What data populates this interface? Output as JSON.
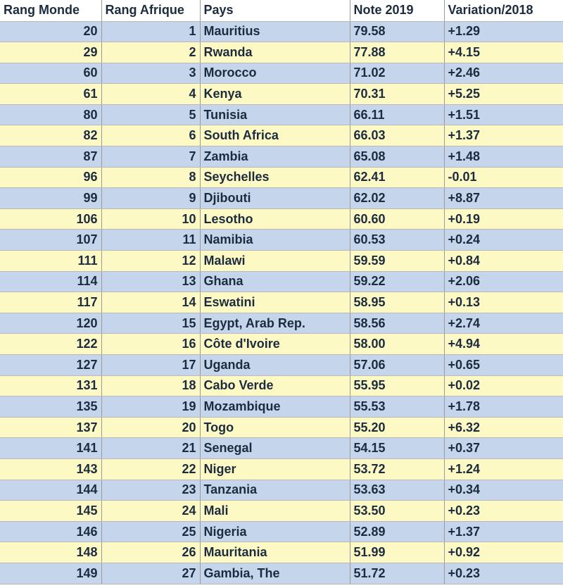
{
  "header": {
    "rang_monde": "Rang Monde",
    "rang_afrique": "Rang Afrique",
    "pays": "Pays",
    "note": "Note 2019",
    "variation": "Variation/2018"
  },
  "rows": [
    {
      "rang_monde": "20",
      "rang_afrique": "1",
      "pays": "Mauritius",
      "note": "79.58",
      "variation": "+1.29"
    },
    {
      "rang_monde": "29",
      "rang_afrique": "2",
      "pays": "Rwanda",
      "note": "77.88",
      "variation": "+4.15"
    },
    {
      "rang_monde": "60",
      "rang_afrique": "3",
      "pays": "Morocco",
      "note": "71.02",
      "variation": "+2.46"
    },
    {
      "rang_monde": "61",
      "rang_afrique": "4",
      "pays": "Kenya",
      "note": "70.31",
      "variation": "+5.25"
    },
    {
      "rang_monde": "80",
      "rang_afrique": "5",
      "pays": "Tunisia",
      "note": "66.11",
      "variation": "+1.51"
    },
    {
      "rang_monde": "82",
      "rang_afrique": "6",
      "pays": "South Africa",
      "note": "66.03",
      "variation": "+1.37"
    },
    {
      "rang_monde": "87",
      "rang_afrique": "7",
      "pays": "Zambia",
      "note": "65.08",
      "variation": "+1.48"
    },
    {
      "rang_monde": "96",
      "rang_afrique": "8",
      "pays": "Seychelles",
      "note": "62.41",
      "variation": "-0.01"
    },
    {
      "rang_monde": "99",
      "rang_afrique": "9",
      "pays": "Djibouti",
      "note": "62.02",
      "variation": "+8.87"
    },
    {
      "rang_monde": "106",
      "rang_afrique": "10",
      "pays": "Lesotho",
      "note": "60.60",
      "variation": "+0.19"
    },
    {
      "rang_monde": "107",
      "rang_afrique": "11",
      "pays": "Namibia",
      "note": "60.53",
      "variation": "+0.24"
    },
    {
      "rang_monde": "111",
      "rang_afrique": "12",
      "pays": "Malawi",
      "note": "59.59",
      "variation": "+0.84"
    },
    {
      "rang_monde": "114",
      "rang_afrique": "13",
      "pays": "Ghana",
      "note": "59.22",
      "variation": "+2.06"
    },
    {
      "rang_monde": "117",
      "rang_afrique": "14",
      "pays": "Eswatini",
      "note": "58.95",
      "variation": "+0.13"
    },
    {
      "rang_monde": "120",
      "rang_afrique": "15",
      "pays": "Egypt, Arab Rep.",
      "note": "58.56",
      "variation": "+2.74"
    },
    {
      "rang_monde": "122",
      "rang_afrique": "16",
      "pays": "Côte d'Ivoire",
      "note": "58.00",
      "variation": "+4.94"
    },
    {
      "rang_monde": "127",
      "rang_afrique": "17",
      "pays": "Uganda",
      "note": "57.06",
      "variation": "+0.65"
    },
    {
      "rang_monde": "131",
      "rang_afrique": "18",
      "pays": "Cabo Verde",
      "note": "55.95",
      "variation": "+0.02"
    },
    {
      "rang_monde": "135",
      "rang_afrique": "19",
      "pays": "Mozambique",
      "note": "55.53",
      "variation": "+1.78"
    },
    {
      "rang_monde": "137",
      "rang_afrique": "20",
      "pays": "Togo",
      "note": "55.20",
      "variation": "+6.32"
    },
    {
      "rang_monde": "141",
      "rang_afrique": "21",
      "pays": "Senegal",
      "note": "54.15",
      "variation": "+0.37"
    },
    {
      "rang_monde": "143",
      "rang_afrique": "22",
      "pays": "Niger",
      "note": "53.72",
      "variation": "+1.24"
    },
    {
      "rang_monde": "144",
      "rang_afrique": "23",
      "pays": "Tanzania",
      "note": "53.63",
      "variation": "+0.34"
    },
    {
      "rang_monde": "145",
      "rang_afrique": "24",
      "pays": "Mali",
      "note": "53.50",
      "variation": "+0.23"
    },
    {
      "rang_monde": "146",
      "rang_afrique": "25",
      "pays": "Nigeria",
      "note": "52.89",
      "variation": "+1.37"
    },
    {
      "rang_monde": "148",
      "rang_afrique": "26",
      "pays": "Mauritania",
      "note": "51.99",
      "variation": "+0.92"
    },
    {
      "rang_monde": "149",
      "rang_afrique": "27",
      "pays": "Gambia, The",
      "note": "51.72",
      "variation": "+0.23"
    }
  ],
  "colors": {
    "row_blue": "#c5d6ec",
    "row_yellow": "#fdf9c4",
    "text": "#1c2c3e"
  }
}
